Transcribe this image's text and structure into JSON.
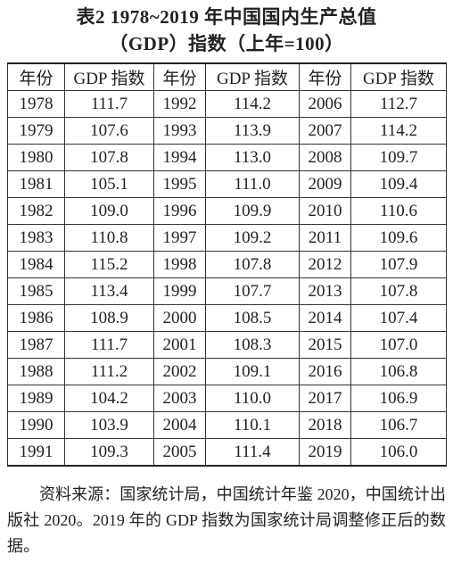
{
  "title": [
    "表2  1978~2019 年中国国内生产总值",
    "（GDP）指数（上年=100）"
  ],
  "table": {
    "header": [
      "年份",
      "GDP 指数",
      "年份",
      "GDP 指数",
      "年份",
      "GDP 指数"
    ],
    "rows": [
      [
        "1978",
        "111.7",
        "1992",
        "114.2",
        "2006",
        "112.7"
      ],
      [
        "1979",
        "107.6",
        "1993",
        "113.9",
        "2007",
        "114.2"
      ],
      [
        "1980",
        "107.8",
        "1994",
        "113.0",
        "2008",
        "109.7"
      ],
      [
        "1981",
        "105.1",
        "1995",
        "111.0",
        "2009",
        "109.4"
      ],
      [
        "1982",
        "109.0",
        "1996",
        "109.9",
        "2010",
        "110.6"
      ],
      [
        "1983",
        "110.8",
        "1997",
        "109.2",
        "2011",
        "109.6"
      ],
      [
        "1984",
        "115.2",
        "1998",
        "107.8",
        "2012",
        "107.9"
      ],
      [
        "1985",
        "113.4",
        "1999",
        "107.7",
        "2013",
        "107.8"
      ],
      [
        "1986",
        "108.9",
        "2000",
        "108.5",
        "2014",
        "107.4"
      ],
      [
        "1987",
        "111.7",
        "2001",
        "108.3",
        "2015",
        "107.0"
      ],
      [
        "1988",
        "111.2",
        "2002",
        "109.1",
        "2016",
        "106.8"
      ],
      [
        "1989",
        "104.2",
        "2003",
        "110.0",
        "2017",
        "106.9"
      ],
      [
        "1990",
        "103.9",
        "2004",
        "110.1",
        "2018",
        "106.7"
      ],
      [
        "1991",
        "109.3",
        "2005",
        "111.4",
        "2019",
        "106.0"
      ]
    ]
  },
  "note": "资料来源：国家统计局，中国统计年鉴 2020，中国统计出版社 2020。2019 年的 GDP 指数为国家统计局调整修正后的数据。"
}
